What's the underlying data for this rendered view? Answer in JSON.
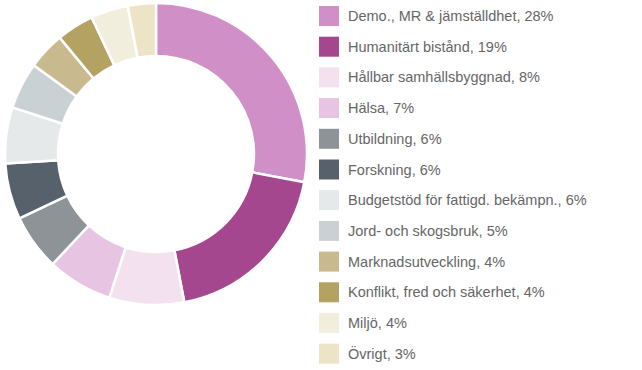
{
  "chart_data": {
    "type": "pie",
    "categories": [
      "Demo., MR & jämställdhet",
      "Humanitärt bistånd",
      "Hållbar samhällsbyggnad",
      "Hälsa",
      "Utbildning",
      "Forskning",
      "Budgetstöd för fattigd. bekämpn.",
      "Jord- och skogsbruk",
      "Marknadsutveckling",
      "Konflikt, fred och säkerhet",
      "Miljö",
      "Övrigt"
    ],
    "values": [
      28,
      19,
      8,
      7,
      6,
      6,
      6,
      5,
      4,
      4,
      4,
      3
    ],
    "value_labels": [
      "28%",
      "19%",
      "8%",
      "7%",
      "6%",
      "6%",
      "6%",
      "5%",
      "4%",
      "4%",
      "4%",
      "3%"
    ],
    "colors": [
      "#d08fc6",
      "#a4478f",
      "#f3e1ef",
      "#e7c4e1",
      "#8d9397",
      "#56616c",
      "#e5e9ea",
      "#cad1d4",
      "#c8b98f",
      "#b4a262",
      "#f2eedd",
      "#ede4c7"
    ],
    "legend": "right",
    "data_labels": false
  }
}
